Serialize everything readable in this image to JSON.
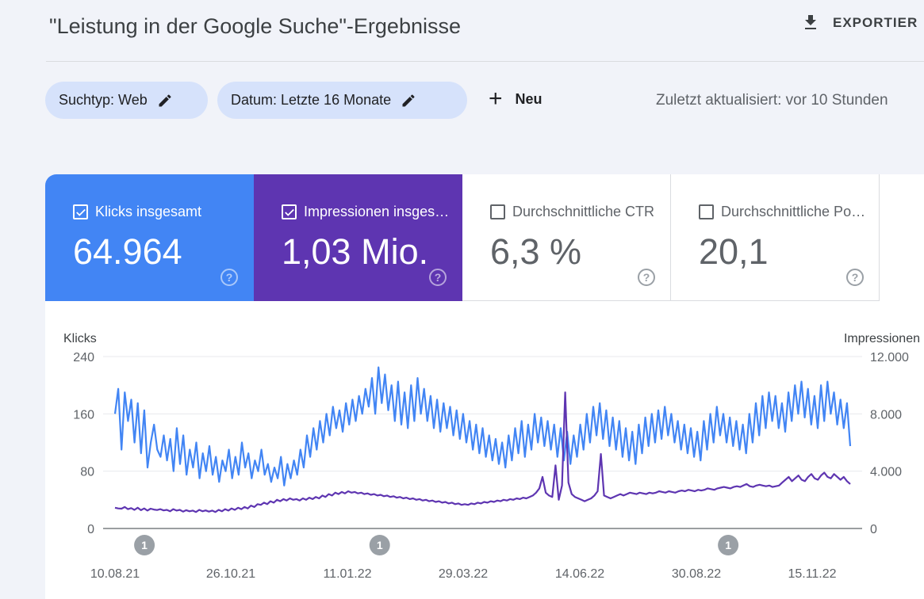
{
  "header": {
    "title": "\"Leistung in der Google Suche\"-Ergebnisse",
    "export_label": "EXPORTIER"
  },
  "filters": {
    "search_type": "Suchtyp: Web",
    "date": "Datum: Letzte 16 Monate",
    "new_label": "Neu",
    "last_updated": "Zuletzt aktualisiert: vor 10 Stunden"
  },
  "metrics": [
    {
      "label": "Klicks insgesamt",
      "value": "64.964",
      "checked": true,
      "color": "#4285f4"
    },
    {
      "label": "Impressionen insgesamt",
      "value": "1,03 Mio.",
      "checked": true,
      "color": "#5e35b1"
    },
    {
      "label": "Durchschnittliche CTR",
      "value": "6,3 %",
      "checked": false
    },
    {
      "label": "Durchschnittliche Position",
      "value": "20,1",
      "checked": false
    }
  ],
  "colors": {
    "clicks": "#4285f4",
    "impressions": "#5e35b1"
  },
  "chart_data": {
    "type": "line",
    "ylabel_left": "Klicks",
    "ylabel_right": "Impressionen",
    "y_left_ticks": [
      "240",
      "160",
      "80",
      "0"
    ],
    "y_right_ticks": [
      "12.000",
      "8.000",
      "4.000",
      "0"
    ],
    "ylim_left": [
      0,
      240
    ],
    "ylim_right": [
      0,
      12000
    ],
    "x_ticks": [
      "10.08.21",
      "26.10.21",
      "11.01.22",
      "29.03.22",
      "14.06.22",
      "30.08.22",
      "15.11.22"
    ],
    "annotations": [
      {
        "label": "1",
        "position": 0.04
      },
      {
        "label": "1",
        "position": 0.36
      },
      {
        "label": "1",
        "position": 0.834
      }
    ],
    "series": [
      {
        "name": "Klicks",
        "axis": "left",
        "color": "#4285f4",
        "values": [
          160,
          195,
          110,
          190,
          150,
          180,
          120,
          175,
          105,
          165,
          85,
          120,
          145,
          110,
          100,
          130,
          95,
          125,
          80,
          140,
          90,
          130,
          75,
          110,
          85,
          120,
          70,
          105,
          80,
          115,
          75,
          100,
          65,
          95,
          80,
          110,
          70,
          100,
          75,
          120,
          85,
          105,
          70,
          95,
          80,
          110,
          75,
          90,
          65,
          85,
          70,
          100,
          60,
          90,
          70,
          95,
          75,
          110,
          85,
          130,
          100,
          140,
          110,
          150,
          120,
          160,
          130,
          170,
          140,
          165,
          135,
          175,
          145,
          180,
          150,
          185,
          160,
          195,
          170,
          210,
          160,
          225,
          175,
          215,
          165,
          200,
          150,
          205,
          145,
          190,
          140,
          200,
          150,
          210,
          160,
          195,
          150,
          185,
          140,
          180,
          135,
          175,
          140,
          170,
          130,
          165,
          125,
          160,
          120,
          150,
          110,
          145,
          105,
          140,
          100,
          130,
          95,
          125,
          90,
          120,
          85,
          130,
          95,
          140,
          105,
          150,
          100,
          145,
          110,
          160,
          120,
          155,
          115,
          150,
          110,
          145,
          100,
          140,
          95,
          135,
          90,
          130,
          100,
          145,
          110,
          160,
          120,
          170,
          130,
          175,
          125,
          165,
          115,
          155,
          110,
          150,
          100,
          140,
          95,
          135,
          90,
          145,
          105,
          155,
          115,
          160,
          120,
          165,
          125,
          170,
          130,
          160,
          120,
          150,
          110,
          145,
          105,
          140,
          100,
          135,
          95,
          150,
          110,
          160,
          120,
          170,
          130,
          160,
          120,
          155,
          115,
          150,
          110,
          145,
          105,
          160,
          120,
          175,
          130,
          185,
          140,
          190,
          150,
          185,
          140,
          175,
          135,
          190,
          150,
          200,
          160,
          205,
          155,
          195,
          145,
          185,
          140,
          200,
          150,
          205,
          160,
          190,
          145,
          180,
          140,
          175,
          115
        ]
      },
      {
        "name": "Impressionen",
        "axis": "right",
        "color": "#5e35b1",
        "values": [
          1450,
          1400,
          1380,
          1500,
          1350,
          1420,
          1300,
          1450,
          1280,
          1400,
          1250,
          1380,
          1320,
          1290,
          1350,
          1260,
          1300,
          1200,
          1350,
          1250,
          1300,
          1180,
          1280,
          1200,
          1250,
          1150,
          1300,
          1200,
          1260,
          1180,
          1250,
          1150,
          1300,
          1200,
          1350,
          1250,
          1400,
          1300,
          1450,
          1350,
          1500,
          1400,
          1600,
          1500,
          1700,
          1650,
          1800,
          1700,
          1900,
          1800,
          2000,
          1900,
          2050,
          1950,
          2100,
          2000,
          2050,
          1950,
          2100,
          2000,
          2150,
          2050,
          2200,
          2100,
          2300,
          2200,
          2400,
          2300,
          2500,
          2400,
          2550,
          2450,
          2600,
          2500,
          2550,
          2450,
          2500,
          2400,
          2450,
          2350,
          2400,
          2300,
          2350,
          2250,
          2300,
          2200,
          2250,
          2150,
          2200,
          2100,
          2150,
          2050,
          2100,
          2000,
          2050,
          1950,
          2000,
          1900,
          1950,
          1850,
          1900,
          1800,
          1850,
          1750,
          1800,
          1700,
          1750,
          1650,
          1700,
          1650,
          1750,
          1700,
          1800,
          1750,
          1850,
          1800,
          1900,
          1850,
          1950,
          1900,
          2000,
          1950,
          2050,
          2000,
          2100,
          2050,
          2150,
          2100,
          2200,
          2300,
          2500,
          2800,
          3600,
          2500,
          2300,
          2200,
          4400,
          2000,
          3000,
          9500,
          3200,
          2400,
          2200,
          2100,
          2000,
          1900,
          2000,
          2100,
          2300,
          2600,
          5200,
          2300,
          2200,
          2100,
          2200,
          2300,
          2400,
          2300,
          2400,
          2500,
          2450,
          2400,
          2500,
          2450,
          2400,
          2500,
          2450,
          2500,
          2600,
          2550,
          2500,
          2600,
          2550,
          2500,
          2600,
          2650,
          2600,
          2700,
          2650,
          2600,
          2700,
          2650,
          2700,
          2800,
          2750,
          2700,
          2800,
          2850,
          2900,
          2850,
          2800,
          2900,
          2950,
          2900,
          3000,
          3100,
          2950,
          2900,
          3000,
          3050,
          3000,
          2950,
          3000,
          2900,
          2950,
          3000,
          3200,
          3400,
          3600,
          3300,
          3500,
          3700,
          3400,
          3300,
          3600,
          3800,
          3500,
          3400,
          3700,
          3900,
          3600,
          3500,
          3800,
          3600,
          3400,
          3600,
          3300,
          3100
        ]
      }
    ]
  }
}
